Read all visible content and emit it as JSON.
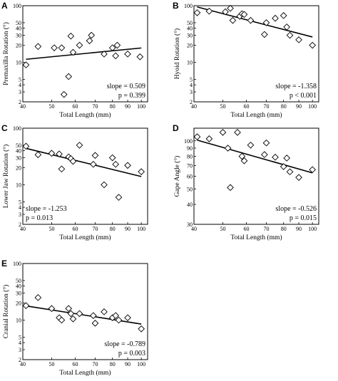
{
  "chart_data": [
    {
      "panel": "A",
      "type": "scatter",
      "ylabel": "Premaxilla Rotation (°)",
      "xlabel": "Total Length (mm)",
      "xscale": "log",
      "yscale": "log",
      "xlim": [
        40,
        105
      ],
      "ylim": [
        2,
        100
      ],
      "xticks": [
        40,
        50,
        60,
        70,
        80,
        90,
        100
      ],
      "yticks": [
        2,
        3,
        4,
        5,
        10,
        20,
        30,
        40,
        50,
        100
      ],
      "points": [
        [
          41,
          9
        ],
        [
          45,
          19
        ],
        [
          51,
          18
        ],
        [
          54,
          18
        ],
        [
          55,
          2.7
        ],
        [
          57,
          5.6
        ],
        [
          58,
          29
        ],
        [
          59,
          15
        ],
        [
          62,
          20
        ],
        [
          67,
          24
        ],
        [
          68,
          30
        ],
        [
          75,
          14
        ],
        [
          80,
          18
        ],
        [
          82,
          13
        ],
        [
          83,
          20
        ],
        [
          90,
          14
        ],
        [
          99,
          12.5
        ]
      ],
      "fit": [
        [
          41,
          11.3
        ],
        [
          100,
          17.9
        ]
      ],
      "slope_text": "slope = 0.509",
      "p_text": "p = 0.399",
      "stats_position": "lower-right"
    },
    {
      "panel": "B",
      "type": "scatter",
      "ylabel": "Hyoid Rotation (°)",
      "xlabel": "Total Length (mm)",
      "xscale": "log",
      "yscale": "log",
      "xlim": [
        40,
        105
      ],
      "ylim": [
        2,
        100
      ],
      "xticks": [
        40,
        50,
        60,
        70,
        80,
        90,
        100
      ],
      "yticks": [
        2,
        3,
        4,
        5,
        10,
        20,
        30,
        40,
        50,
        100
      ],
      "points": [
        [
          41,
          75
        ],
        [
          45,
          80
        ],
        [
          51,
          78
        ],
        [
          53,
          90
        ],
        [
          54,
          55
        ],
        [
          57,
          65
        ],
        [
          58,
          72
        ],
        [
          59,
          70
        ],
        [
          62,
          55
        ],
        [
          69,
          31
        ],
        [
          70,
          50
        ],
        [
          75,
          60
        ],
        [
          80,
          67
        ],
        [
          82,
          42
        ],
        [
          84,
          30
        ],
        [
          90,
          25
        ],
        [
          100,
          20
        ]
      ],
      "fit": [
        [
          41,
          95
        ],
        [
          100,
          28
        ]
      ],
      "slope_text": "slope = -1.358",
      "p_text": "p < 0.001",
      "stats_position": "lower-right"
    },
    {
      "panel": "C",
      "type": "scatter",
      "ylabel": "Lower Jaw Rotation (°)",
      "xlabel": "Total Length (mm)",
      "xscale": "log",
      "yscale": "log",
      "xlim": [
        40,
        105
      ],
      "ylim": [
        2,
        100
      ],
      "xticks": [
        40,
        50,
        60,
        70,
        80,
        90,
        100
      ],
      "yticks": [
        2,
        3,
        4,
        5,
        10,
        20,
        30,
        40,
        50,
        100
      ],
      "points": [
        [
          41,
          48
        ],
        [
          45,
          34
        ],
        [
          50,
          36
        ],
        [
          53,
          35
        ],
        [
          54,
          19
        ],
        [
          57,
          31
        ],
        [
          58,
          29
        ],
        [
          59,
          26
        ],
        [
          62,
          50
        ],
        [
          69,
          23
        ],
        [
          70,
          33
        ],
        [
          75,
          10
        ],
        [
          80,
          30
        ],
        [
          82,
          23
        ],
        [
          84,
          6
        ],
        [
          90,
          22
        ],
        [
          100,
          17
        ]
      ],
      "fit": [
        [
          41,
          44
        ],
        [
          100,
          14
        ]
      ],
      "slope_text": "slope = -1.253",
      "p_text": "p = 0.013",
      "stats_position": "lower-left"
    },
    {
      "panel": "D",
      "type": "scatter",
      "ylabel": "Gape Angle (°)",
      "xlabel": "Total Length (mm)",
      "xscale": "log",
      "yscale": "log",
      "xlim": [
        40,
        105
      ],
      "ylim": [
        30,
        120
      ],
      "xticks": [
        40,
        50,
        60,
        70,
        80,
        90,
        100
      ],
      "yticks": [
        30,
        40,
        50,
        60,
        70,
        80,
        90,
        100
      ],
      "points": [
        [
          41,
          106
        ],
        [
          45,
          103
        ],
        [
          50,
          113
        ],
        [
          52,
          90
        ],
        [
          53,
          51
        ],
        [
          56,
          113
        ],
        [
          58,
          80
        ],
        [
          59,
          75
        ],
        [
          62,
          94
        ],
        [
          69,
          82
        ],
        [
          70,
          97
        ],
        [
          75,
          79
        ],
        [
          80,
          69
        ],
        [
          82,
          78
        ],
        [
          84,
          64
        ],
        [
          90,
          59
        ],
        [
          100,
          66
        ]
      ],
      "fit": [
        [
          41,
          101
        ],
        [
          100,
          63
        ]
      ],
      "slope_text": "slope = -0.526",
      "p_text": "p = 0.015",
      "stats_position": "lower-right"
    },
    {
      "panel": "E",
      "type": "scatter",
      "ylabel": "Cranial Rotation (°)",
      "xlabel": "Total Length (mm)",
      "xscale": "log",
      "yscale": "log",
      "xlim": [
        40,
        105
      ],
      "ylim": [
        2,
        100
      ],
      "xticks": [
        40,
        50,
        60,
        70,
        80,
        90,
        100
      ],
      "yticks": [
        2,
        3,
        4,
        5,
        10,
        20,
        30,
        40,
        50,
        100
      ],
      "points": [
        [
          41,
          18
        ],
        [
          45,
          25
        ],
        [
          50,
          16
        ],
        [
          53,
          11
        ],
        [
          54,
          10
        ],
        [
          57,
          16
        ],
        [
          58,
          13
        ],
        [
          59,
          10.5
        ],
        [
          62,
          13
        ],
        [
          69,
          12
        ],
        [
          70,
          8.8
        ],
        [
          75,
          14
        ],
        [
          80,
          11
        ],
        [
          82,
          12
        ],
        [
          84,
          10
        ],
        [
          90,
          11
        ],
        [
          100,
          7
        ]
      ],
      "fit": [
        [
          41,
          17.8
        ],
        [
          100,
          8.5
        ]
      ],
      "slope_text": "slope = -0.789",
      "p_text": "p = 0.003",
      "stats_position": "lower-right"
    }
  ]
}
